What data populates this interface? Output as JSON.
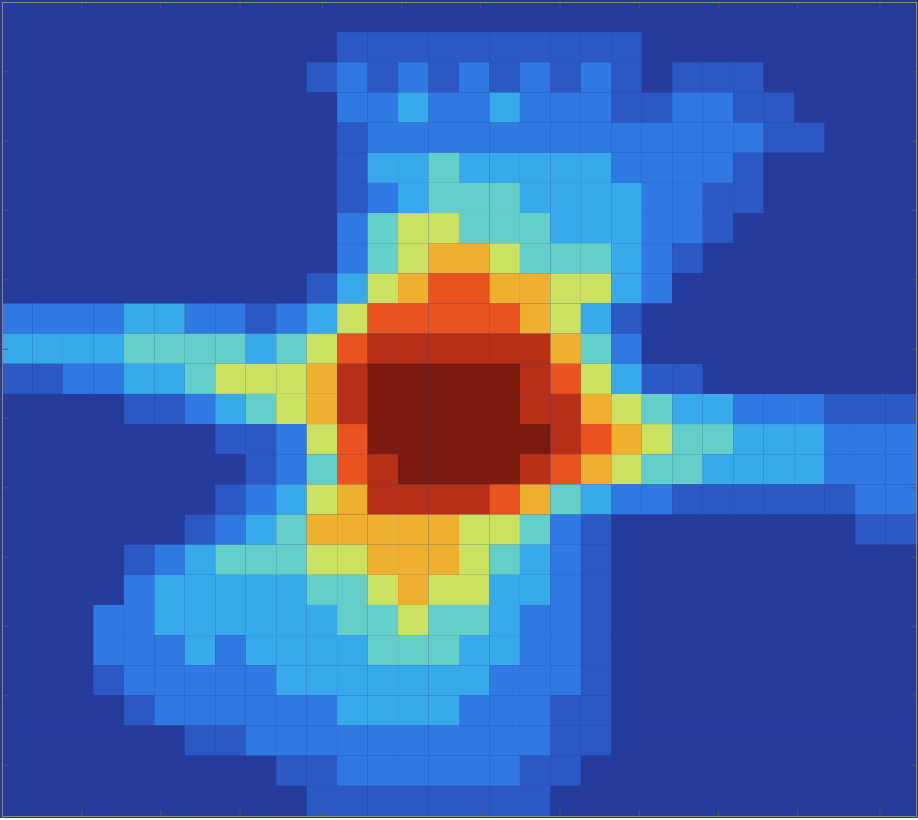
{
  "chart_data": {
    "type": "heatmap",
    "tick_labels": false,
    "xlim": [
      0,
      30
    ],
    "ylim": [
      0,
      27
    ],
    "xticks": [
      2.6,
      5.2,
      7.8,
      10.5,
      13.1,
      15.7,
      18.3,
      20.9,
      23.5,
      26.1,
      28.8
    ],
    "yticks": [
      2.3,
      4.6,
      6.9,
      9.2,
      11.5,
      13.8,
      16.1,
      18.4,
      20.7,
      23.0,
      25.3
    ],
    "zlim": [
      0,
      9
    ],
    "values": [
      [
        0,
        0,
        0,
        0,
        0,
        0,
        0,
        0,
        0,
        0,
        0,
        0,
        0,
        0,
        0,
        0,
        0,
        0,
        0,
        0,
        0,
        0,
        0,
        0,
        0,
        0,
        0,
        0,
        0,
        0
      ],
      [
        0,
        0,
        0,
        0,
        0,
        0,
        0,
        0,
        0,
        0,
        0,
        1,
        1,
        1,
        1,
        1,
        1,
        1,
        1,
        1,
        1,
        0,
        0,
        0,
        0,
        0,
        0,
        0,
        0,
        0
      ],
      [
        0,
        0,
        0,
        0,
        0,
        0,
        0,
        0,
        0,
        0,
        1,
        2,
        1,
        2,
        1,
        2,
        1,
        2,
        1,
        2,
        1,
        0,
        1,
        1,
        1,
        0,
        0,
        0,
        0,
        0
      ],
      [
        0,
        0,
        0,
        0,
        0,
        0,
        0,
        0,
        0,
        0,
        0,
        2,
        2,
        3,
        2,
        2,
        3,
        2,
        2,
        2,
        1,
        1,
        2,
        2,
        1,
        1,
        0,
        0,
        0,
        0
      ],
      [
        0,
        0,
        0,
        0,
        0,
        0,
        0,
        0,
        0,
        0,
        0,
        1,
        2,
        2,
        2,
        2,
        2,
        2,
        2,
        2,
        2,
        2,
        2,
        2,
        2,
        1,
        1,
        0,
        0,
        0
      ],
      [
        0,
        0,
        0,
        0,
        0,
        0,
        0,
        0,
        0,
        0,
        0,
        1,
        3,
        3,
        4,
        3,
        3,
        3,
        3,
        3,
        2,
        2,
        2,
        2,
        1,
        0,
        0,
        0,
        0,
        0
      ],
      [
        0,
        0,
        0,
        0,
        0,
        0,
        0,
        0,
        0,
        0,
        0,
        1,
        2,
        3,
        4,
        4,
        4,
        3,
        3,
        3,
        3,
        2,
        2,
        1,
        1,
        0,
        0,
        0,
        0,
        0
      ],
      [
        0,
        0,
        0,
        0,
        0,
        0,
        0,
        0,
        0,
        0,
        0,
        2,
        4,
        5,
        5,
        4,
        4,
        4,
        3,
        3,
        3,
        2,
        2,
        1,
        0,
        0,
        0,
        0,
        0,
        0
      ],
      [
        0,
        0,
        0,
        0,
        0,
        0,
        0,
        0,
        0,
        0,
        0,
        2,
        4,
        5,
        6,
        6,
        5,
        4,
        4,
        4,
        3,
        2,
        1,
        0,
        0,
        0,
        0,
        0,
        0,
        0
      ],
      [
        0,
        0,
        0,
        0,
        0,
        0,
        0,
        0,
        0,
        0,
        1,
        3,
        5,
        6,
        7,
        7,
        6,
        6,
        5,
        5,
        3,
        2,
        0,
        0,
        0,
        0,
        0,
        0,
        0,
        0
      ],
      [
        2,
        2,
        2,
        2,
        3,
        3,
        2,
        2,
        1,
        2,
        3,
        5,
        7,
        7,
        7,
        7,
        7,
        6,
        5,
        3,
        1,
        0,
        0,
        0,
        0,
        0,
        0,
        0,
        0,
        0
      ],
      [
        3,
        3,
        3,
        3,
        4,
        4,
        4,
        4,
        3,
        4,
        5,
        7,
        8,
        8,
        8,
        8,
        8,
        8,
        6,
        4,
        2,
        0,
        0,
        0,
        0,
        0,
        0,
        0,
        0,
        0
      ],
      [
        1,
        1,
        2,
        2,
        3,
        3,
        4,
        5,
        5,
        5,
        6,
        8,
        9,
        9,
        9,
        9,
        9,
        8,
        7,
        5,
        3,
        1,
        1,
        0,
        0,
        0,
        0,
        0,
        0,
        0
      ],
      [
        0,
        0,
        0,
        0,
        1,
        1,
        2,
        3,
        4,
        5,
        6,
        8,
        9,
        9,
        9,
        9,
        9,
        8,
        8,
        6,
        5,
        4,
        3,
        3,
        2,
        2,
        2,
        1,
        1,
        1
      ],
      [
        0,
        0,
        0,
        0,
        0,
        0,
        0,
        1,
        1,
        2,
        5,
        7,
        9,
        9,
        9,
        9,
        9,
        9,
        8,
        7,
        6,
        5,
        4,
        4,
        3,
        3,
        3,
        2,
        2,
        2
      ],
      [
        0,
        0,
        0,
        0,
        0,
        0,
        0,
        0,
        1,
        2,
        4,
        7,
        8,
        9,
        9,
        9,
        9,
        8,
        7,
        6,
        5,
        4,
        4,
        3,
        3,
        3,
        3,
        2,
        2,
        2
      ],
      [
        0,
        0,
        0,
        0,
        0,
        0,
        0,
        1,
        2,
        3,
        5,
        6,
        8,
        8,
        8,
        8,
        7,
        6,
        4,
        3,
        2,
        2,
        1,
        1,
        1,
        1,
        1,
        1,
        2,
        2
      ],
      [
        0,
        0,
        0,
        0,
        0,
        0,
        1,
        2,
        3,
        4,
        6,
        6,
        6,
        6,
        6,
        5,
        5,
        4,
        2,
        1,
        0,
        0,
        0,
        0,
        0,
        0,
        0,
        0,
        1,
        1
      ],
      [
        0,
        0,
        0,
        0,
        1,
        2,
        3,
        4,
        4,
        4,
        5,
        5,
        6,
        6,
        6,
        5,
        4,
        3,
        2,
        1,
        0,
        0,
        0,
        0,
        0,
        0,
        0,
        0,
        0,
        0
      ],
      [
        0,
        0,
        0,
        0,
        2,
        3,
        3,
        3,
        3,
        3,
        4,
        4,
        5,
        6,
        5,
        5,
        3,
        3,
        2,
        1,
        0,
        0,
        0,
        0,
        0,
        0,
        0,
        0,
        0,
        0
      ],
      [
        0,
        0,
        0,
        2,
        2,
        3,
        3,
        3,
        3,
        3,
        3,
        4,
        4,
        5,
        4,
        4,
        3,
        2,
        2,
        1,
        0,
        0,
        0,
        0,
        0,
        0,
        0,
        0,
        0,
        0
      ],
      [
        0,
        0,
        0,
        2,
        2,
        2,
        3,
        2,
        3,
        3,
        3,
        3,
        4,
        4,
        4,
        3,
        3,
        2,
        2,
        1,
        0,
        0,
        0,
        0,
        0,
        0,
        0,
        0,
        0,
        0
      ],
      [
        0,
        0,
        0,
        1,
        2,
        2,
        2,
        2,
        2,
        3,
        3,
        3,
        3,
        3,
        3,
        3,
        2,
        2,
        2,
        1,
        0,
        0,
        0,
        0,
        0,
        0,
        0,
        0,
        0,
        0
      ],
      [
        0,
        0,
        0,
        0,
        1,
        2,
        2,
        2,
        2,
        2,
        2,
        3,
        3,
        3,
        3,
        2,
        2,
        2,
        1,
        1,
        0,
        0,
        0,
        0,
        0,
        0,
        0,
        0,
        0,
        0
      ],
      [
        0,
        0,
        0,
        0,
        0,
        0,
        1,
        1,
        2,
        2,
        2,
        2,
        2,
        2,
        2,
        2,
        2,
        2,
        1,
        1,
        0,
        0,
        0,
        0,
        0,
        0,
        0,
        0,
        0,
        0
      ],
      [
        0,
        0,
        0,
        0,
        0,
        0,
        0,
        0,
        0,
        1,
        1,
        2,
        2,
        2,
        2,
        2,
        2,
        1,
        1,
        0,
        0,
        0,
        0,
        0,
        0,
        0,
        0,
        0,
        0,
        0
      ],
      [
        0,
        0,
        0,
        0,
        0,
        0,
        0,
        0,
        0,
        0,
        1,
        1,
        1,
        1,
        1,
        1,
        1,
        1,
        0,
        0,
        0,
        0,
        0,
        0,
        0,
        0,
        0,
        0,
        0,
        0
      ]
    ]
  }
}
